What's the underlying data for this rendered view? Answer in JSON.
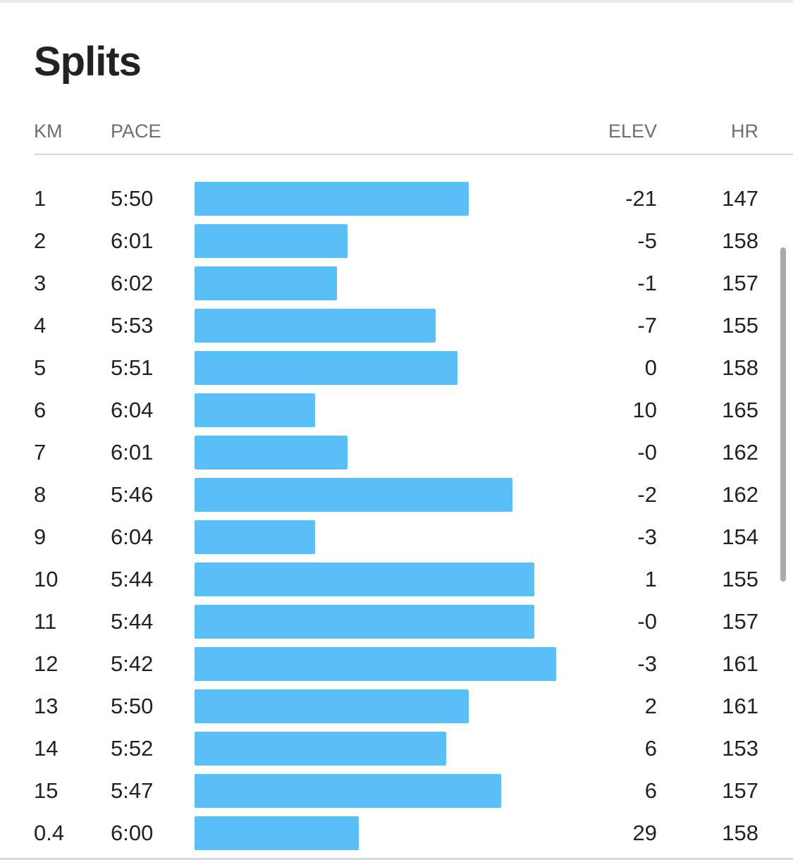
{
  "title": "Splits",
  "columns": {
    "km": "KM",
    "pace": "PACE",
    "elev": "ELEV",
    "hr": "HR"
  },
  "colors": {
    "bar": "#5bbff7",
    "text": "#222222",
    "header_text": "#6e6e73"
  },
  "splits": [
    {
      "km": "1",
      "pace": "5:50",
      "elev": "-21",
      "hr": "147"
    },
    {
      "km": "2",
      "pace": "6:01",
      "elev": "-5",
      "hr": "158"
    },
    {
      "km": "3",
      "pace": "6:02",
      "elev": "-1",
      "hr": "157"
    },
    {
      "km": "4",
      "pace": "5:53",
      "elev": "-7",
      "hr": "155"
    },
    {
      "km": "5",
      "pace": "5:51",
      "elev": "0",
      "hr": "158"
    },
    {
      "km": "6",
      "pace": "6:04",
      "elev": "10",
      "hr": "165"
    },
    {
      "km": "7",
      "pace": "6:01",
      "elev": "-0",
      "hr": "162"
    },
    {
      "km": "8",
      "pace": "5:46",
      "elev": "-2",
      "hr": "162"
    },
    {
      "km": "9",
      "pace": "6:04",
      "elev": "-3",
      "hr": "154"
    },
    {
      "km": "10",
      "pace": "5:44",
      "elev": "1",
      "hr": "155"
    },
    {
      "km": "11",
      "pace": "5:44",
      "elev": "-0",
      "hr": "157"
    },
    {
      "km": "12",
      "pace": "5:42",
      "elev": "-3",
      "hr": "161"
    },
    {
      "km": "13",
      "pace": "5:50",
      "elev": "2",
      "hr": "161"
    },
    {
      "km": "14",
      "pace": "5:52",
      "elev": "6",
      "hr": "153"
    },
    {
      "km": "15",
      "pace": "5:47",
      "elev": "6",
      "hr": "157"
    },
    {
      "km": "0.4",
      "pace": "6:00",
      "elev": "29",
      "hr": "158"
    }
  ]
}
